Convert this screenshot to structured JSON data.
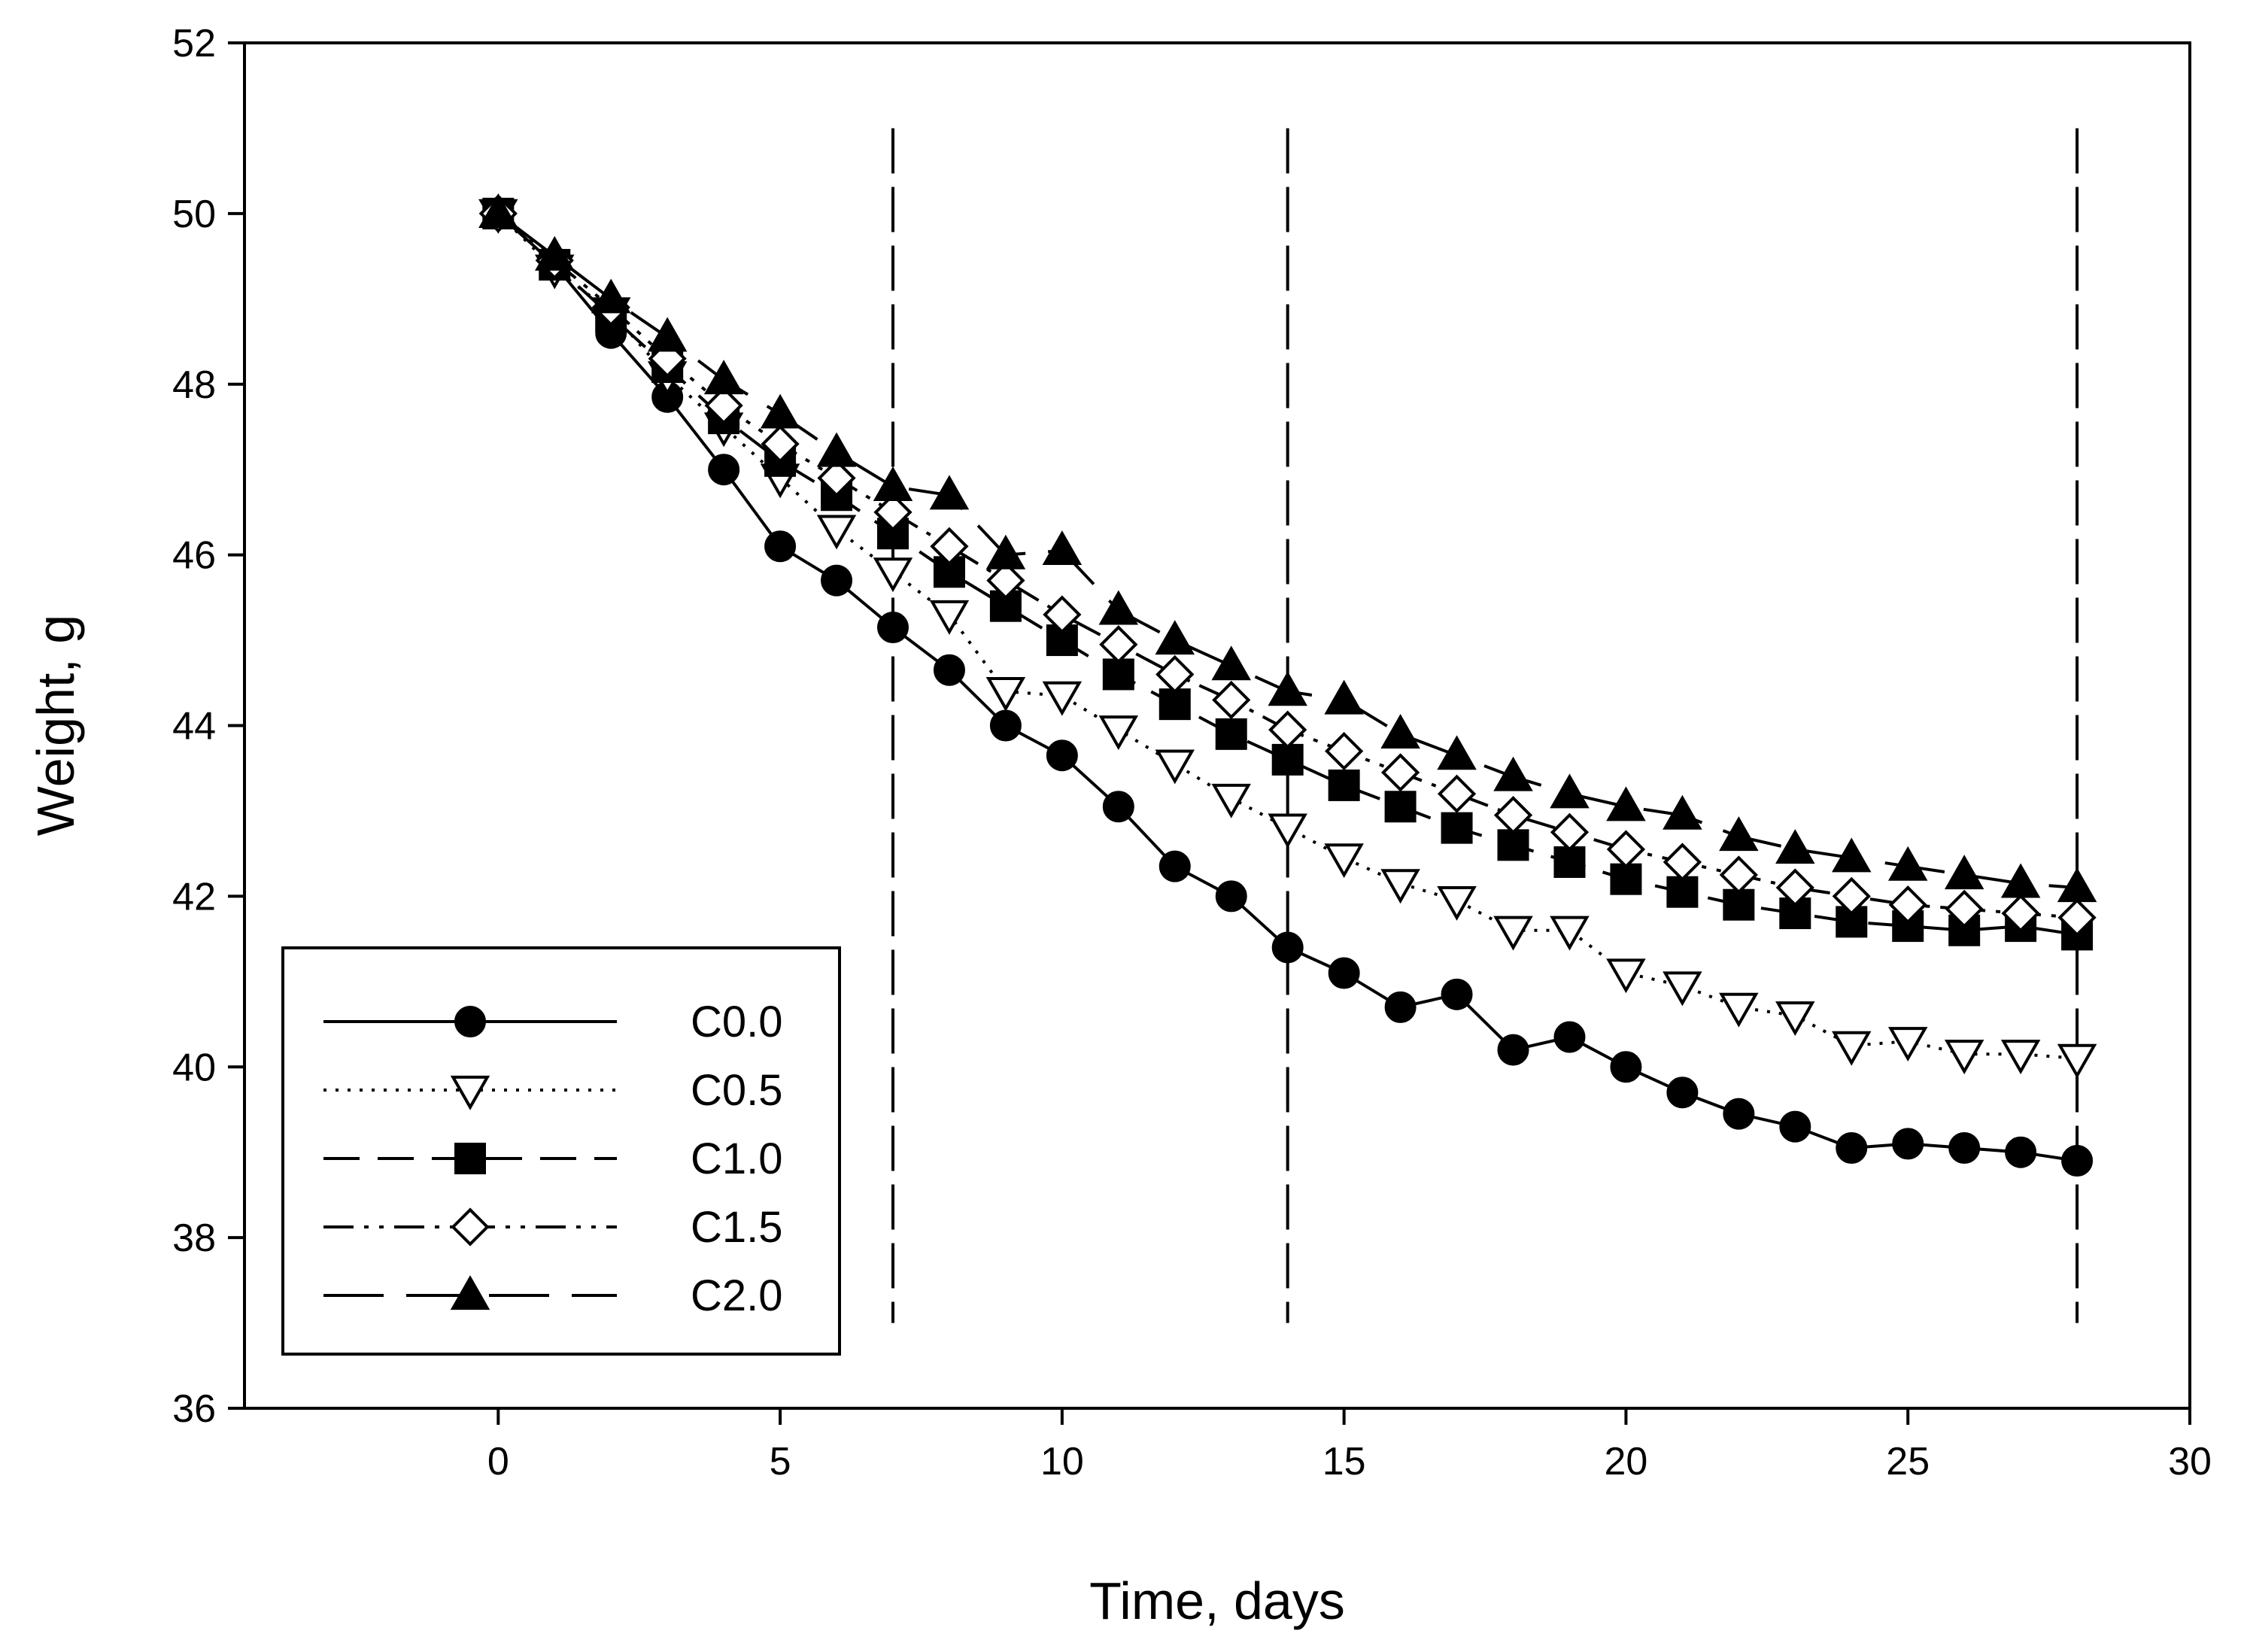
{
  "chart_data": {
    "type": "line",
    "title": "",
    "xlabel": "Time, days",
    "ylabel": "Weight, g",
    "xlim": [
      -4.5,
      30
    ],
    "ylim": [
      36,
      52
    ],
    "xticks": [
      0,
      5,
      10,
      15,
      20,
      25,
      30
    ],
    "yticks": [
      36,
      38,
      40,
      42,
      44,
      46,
      48,
      50,
      52
    ],
    "vertical_reference_lines": [
      7,
      14,
      28
    ],
    "vertical_reference_range": [
      37,
      51
    ],
    "legend_position": "bottom-left",
    "x": [
      0,
      1,
      2,
      3,
      4,
      5,
      6,
      7,
      8,
      9,
      10,
      11,
      12,
      13,
      14,
      15,
      16,
      17,
      18,
      19,
      20,
      21,
      22,
      23,
      24,
      25,
      26,
      27,
      28
    ],
    "series": [
      {
        "name": "C0.0",
        "marker": "circle-filled",
        "line": "solid",
        "values": [
          50.0,
          49.4,
          48.6,
          47.85,
          47.0,
          46.1,
          45.7,
          45.15,
          44.65,
          44.0,
          43.65,
          43.05,
          42.35,
          42.0,
          41.4,
          41.1,
          40.7,
          40.85,
          40.2,
          40.35,
          40.0,
          39.7,
          39.45,
          39.3,
          39.05,
          39.1,
          39.05,
          39.0,
          38.9
        ]
      },
      {
        "name": "C0.5",
        "marker": "triangle-down-open",
        "line": "dotted",
        "values": [
          50.0,
          49.35,
          48.85,
          48.1,
          47.5,
          46.9,
          46.3,
          45.8,
          45.3,
          44.4,
          44.35,
          43.95,
          43.55,
          43.15,
          42.8,
          42.45,
          42.15,
          41.95,
          41.6,
          41.6,
          41.1,
          40.95,
          40.7,
          40.6,
          40.25,
          40.3,
          40.15,
          40.15,
          40.1
        ]
      },
      {
        "name": "C1.0",
        "marker": "square-filled",
        "line": "dashed",
        "values": [
          50.0,
          49.4,
          48.8,
          48.2,
          47.6,
          47.1,
          46.7,
          46.25,
          45.8,
          45.4,
          45.0,
          44.6,
          44.25,
          43.9,
          43.6,
          43.3,
          43.05,
          42.8,
          42.6,
          42.4,
          42.2,
          42.05,
          41.9,
          41.8,
          41.7,
          41.65,
          41.6,
          41.65,
          41.55
        ]
      },
      {
        "name": "C1.5",
        "marker": "diamond-open",
        "line": "dash-dot-dot",
        "values": [
          50.0,
          49.45,
          48.9,
          48.3,
          47.75,
          47.3,
          46.9,
          46.5,
          46.1,
          45.7,
          45.3,
          44.95,
          44.6,
          44.3,
          43.95,
          43.7,
          43.45,
          43.2,
          42.95,
          42.75,
          42.55,
          42.4,
          42.25,
          42.1,
          42.0,
          41.9,
          41.85,
          41.8,
          41.75
        ]
      },
      {
        "name": "C2.0",
        "marker": "triangle-up-filled",
        "line": "long-dash",
        "values": [
          50.0,
          49.5,
          49.0,
          48.55,
          48.05,
          47.65,
          47.2,
          46.8,
          46.7,
          46.0,
          46.05,
          45.35,
          45.0,
          44.7,
          44.4,
          44.3,
          43.9,
          43.65,
          43.4,
          43.2,
          43.05,
          42.95,
          42.7,
          42.55,
          42.45,
          42.35,
          42.25,
          42.15,
          42.1
        ]
      }
    ]
  }
}
